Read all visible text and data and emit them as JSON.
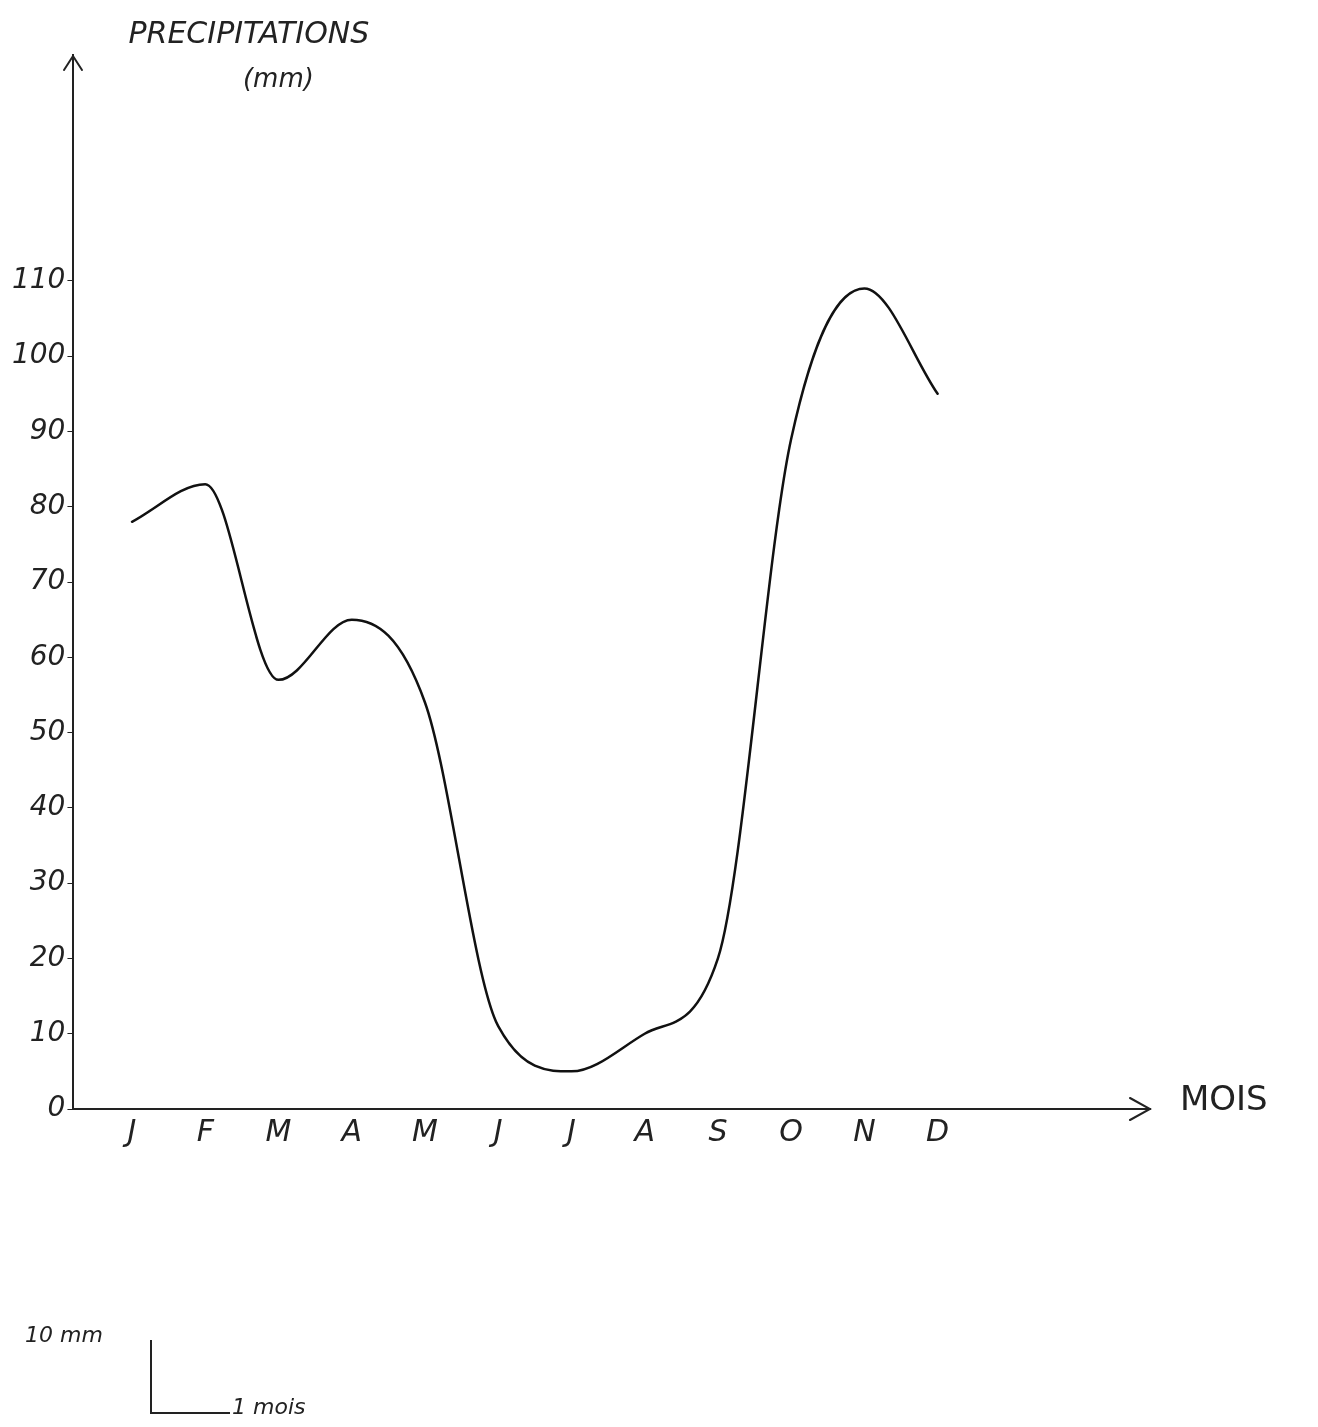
{
  "chart_data": {
    "type": "line",
    "title": "PRECIPITATIONS",
    "ylabel": "(mm)",
    "categories": [
      "J",
      "F",
      "M",
      "A",
      "M",
      "J",
      "J",
      "A",
      "S",
      "O",
      "N",
      "D"
    ],
    "series": [
      {
        "color": "#111111",
        "values": [
          78,
          83,
          57,
          65,
          54,
          11,
          5,
          10,
          20,
          89,
          109,
          95
        ]
      }
    ],
    "ylim": [
      0,
      140
    ],
    "yticks": [
      0,
      10,
      20,
      30,
      40,
      50,
      60,
      70,
      80,
      90,
      100,
      110
    ],
    "grid": false,
    "legend": false,
    "marker": "none",
    "line_style": "solid",
    "annotations": [
      "MOIS",
      "10 mm",
      "1 mois"
    ]
  }
}
